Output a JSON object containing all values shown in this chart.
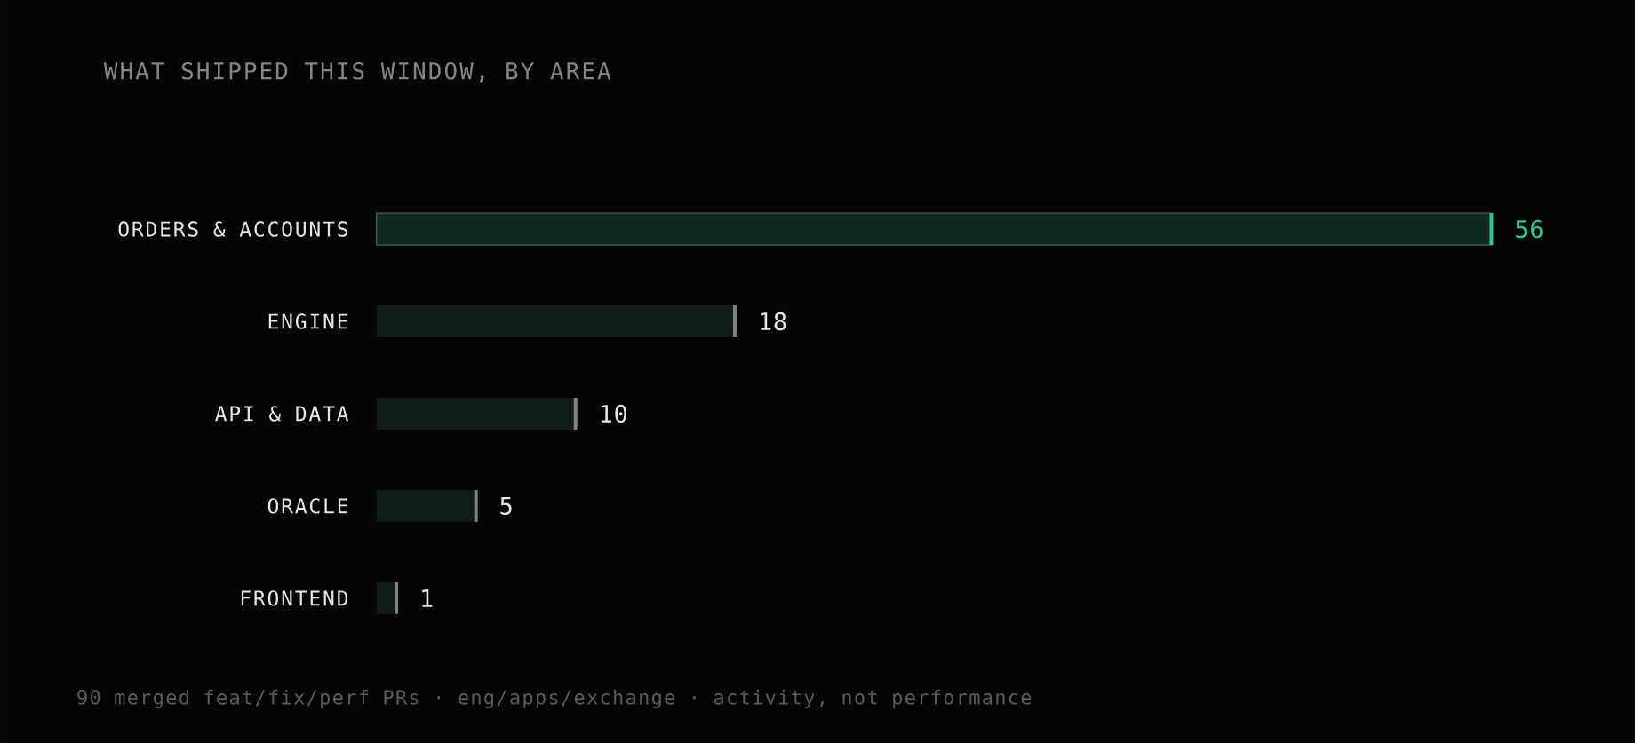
{
  "chart_data": {
    "type": "bar",
    "orientation": "horizontal",
    "title": "WHAT SHIPPED THIS WINDOW, BY AREA",
    "categories": [
      "ORDERS & ACCOUNTS",
      "ENGINE",
      "API & DATA",
      "ORACLE",
      "FRONTEND"
    ],
    "values": [
      56,
      18,
      10,
      5,
      1
    ],
    "colors": [
      "#12291f",
      "#101c17",
      "#101c17",
      "#101c17",
      "#101c17"
    ],
    "data_labels": true,
    "annotations": [
      "90 merged feat/fix/perf PRs · eng/apps/exchange · activity, not performance"
    ]
  }
}
